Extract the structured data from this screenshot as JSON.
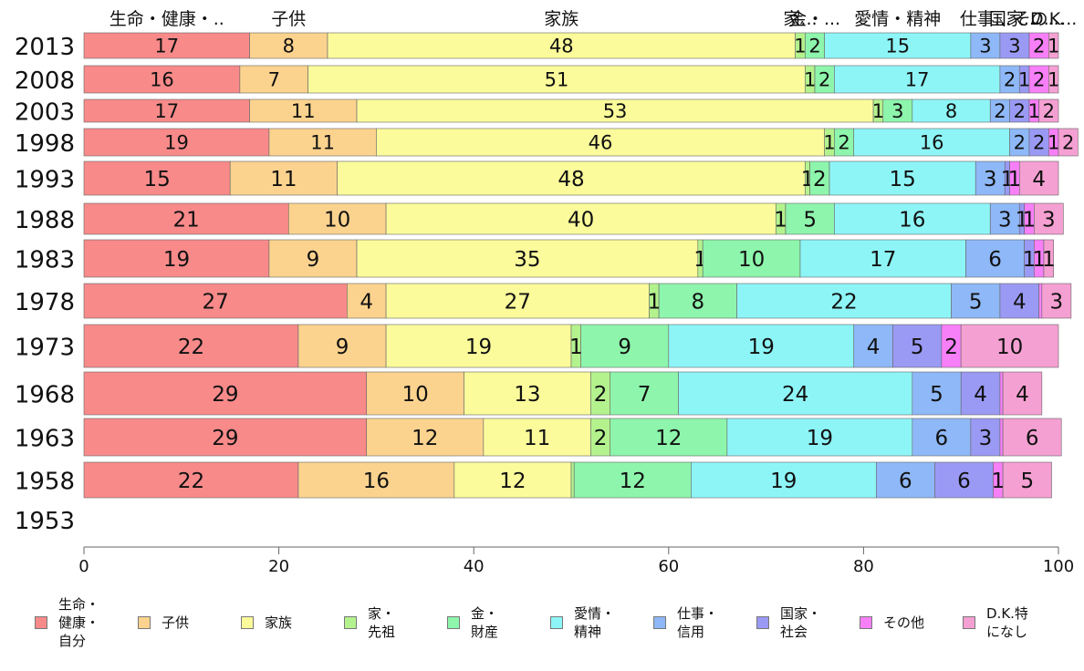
{
  "chart_data": {
    "type": "bar",
    "orientation": "horizontal",
    "stacked": true,
    "categories": [
      "2013",
      "2008",
      "2003",
      "1998",
      "1993",
      "1988",
      "1983",
      "1978",
      "1973",
      "1968",
      "1963",
      "1958",
      "1953"
    ],
    "top_labels": [
      "生命・健康・..",
      "子供",
      "家族",
      "家...",
      "金・...",
      "愛情・精神",
      "仕事...",
      "国家...",
      "その...",
      "D.K..."
    ],
    "series": [
      {
        "name": "生命・\n健康・\n自分",
        "color": "#f88a8a",
        "values": [
          17,
          16,
          17,
          19,
          15,
          21,
          19,
          27,
          22,
          29,
          29,
          22,
          null
        ]
      },
      {
        "name": "子供",
        "color": "#fbd38e",
        "values": [
          8,
          7,
          11,
          11,
          11,
          10,
          9,
          4,
          9,
          10,
          12,
          16,
          null
        ]
      },
      {
        "name": "家族",
        "color": "#fbfb9b",
        "values": [
          48,
          51,
          53,
          46,
          48,
          40,
          35,
          27,
          19,
          13,
          11,
          12,
          null
        ]
      },
      {
        "name": "家・\n先祖",
        "color": "#b4f28e",
        "values": [
          1,
          1,
          1,
          1,
          0.5,
          1,
          0.5,
          1,
          1,
          2,
          2,
          0.3,
          null
        ]
      },
      {
        "name": "金・\n財産",
        "color": "#8ef5ac",
        "values": [
          2,
          2,
          3,
          2,
          2,
          5,
          10,
          8,
          9,
          7,
          12,
          12,
          null
        ]
      },
      {
        "name": "愛情・\n精神",
        "color": "#8ef5f7",
        "values": [
          15,
          17,
          8,
          16,
          15,
          16,
          17,
          22,
          19,
          24,
          19,
          19,
          null
        ]
      },
      {
        "name": "仕事・\n信用",
        "color": "#8eb8f7",
        "values": [
          3,
          2,
          2,
          2,
          3,
          3,
          6,
          5,
          4,
          5,
          6,
          6,
          null
        ]
      },
      {
        "name": "国家・\n社会",
        "color": "#9a9af5",
        "values": [
          3,
          1,
          2,
          2,
          0.5,
          0.5,
          1,
          4,
          5,
          4,
          3,
          6,
          null
        ]
      },
      {
        "name": "その他",
        "color": "#f77ff7",
        "values": [
          2,
          2,
          1,
          1,
          1,
          1,
          1,
          0.3,
          2,
          0.3,
          0.3,
          1,
          null
        ]
      },
      {
        "name": "D.K.特\nになし",
        "color": "#f5a0d2",
        "values": [
          1,
          1,
          2,
          2,
          4,
          3,
          1,
          3,
          10,
          4,
          6,
          5,
          null
        ]
      }
    ],
    "xlim": [
      0,
      100
    ],
    "xticks": [
      0,
      20,
      40,
      60,
      80,
      100
    ],
    "legend_position": "bottom"
  }
}
